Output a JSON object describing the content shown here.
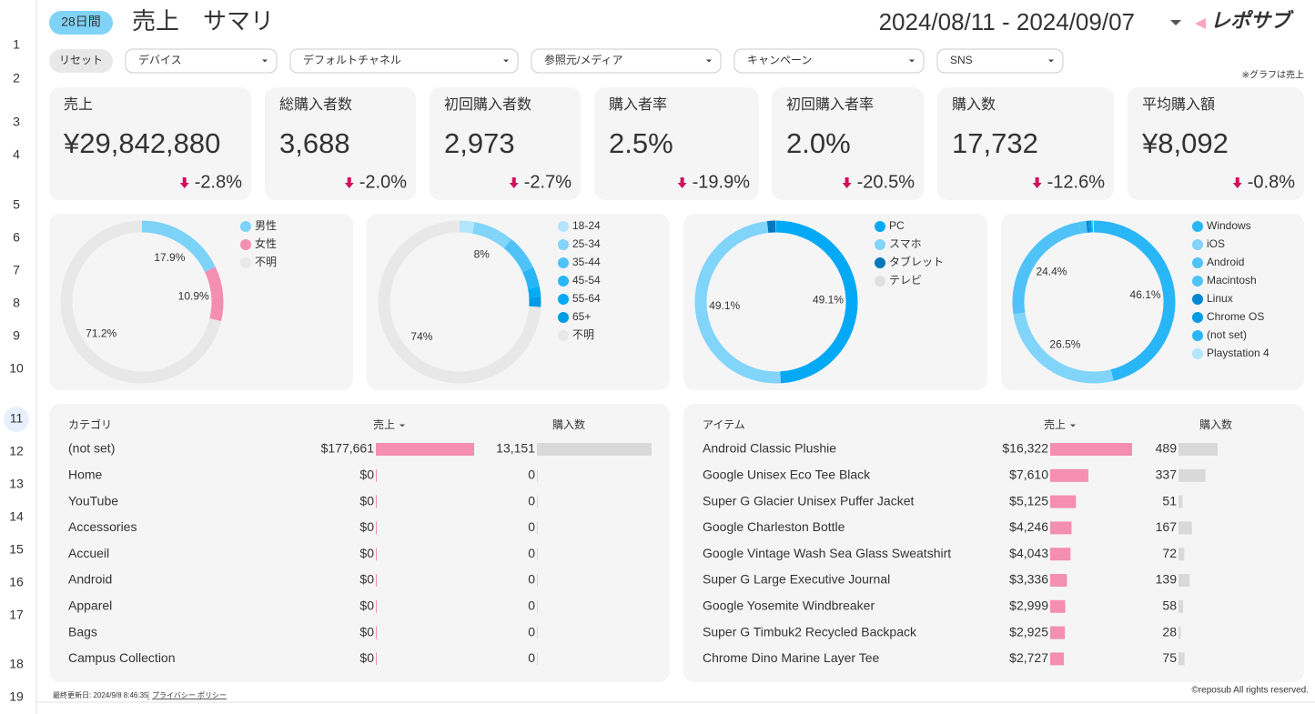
{
  "row_numbers": [
    1,
    2,
    3,
    4,
    5,
    6,
    7,
    8,
    9,
    10,
    11,
    12,
    13,
    14,
    15,
    16,
    17,
    18,
    19
  ],
  "header": {
    "period": "28日間",
    "title": "売上　サマリ",
    "date_range": "2024/08/11 - 2024/09/07",
    "logo": "レポサブ"
  },
  "filters": {
    "reset": "リセット",
    "dropdowns": [
      "デバイス",
      "デフォルトチャネル",
      "参照元/メディア",
      "キャンペーン",
      "SNS"
    ]
  },
  "note": "※グラフは売上",
  "kpis": [
    {
      "label": "売上",
      "value": "¥29,842,880",
      "delta": "-2.8%"
    },
    {
      "label": "総購入者数",
      "value": "3,688",
      "delta": "-2.0%"
    },
    {
      "label": "初回購入者数",
      "value": "2,973",
      "delta": "-2.7%"
    },
    {
      "label": "購入者率",
      "value": "2.5%",
      "delta": "-19.9%"
    },
    {
      "label": "初回購入者率",
      "value": "2.0%",
      "delta": "-20.5%"
    },
    {
      "label": "購入数",
      "value": "17,732",
      "delta": "-12.6%"
    },
    {
      "label": "平均購入額",
      "value": "¥8,092",
      "delta": "-0.8%"
    }
  ],
  "chart_data": [
    {
      "type": "pie",
      "categories": [
        "男性",
        "女性",
        "不明"
      ],
      "values": [
        17.9,
        10.9,
        71.2
      ],
      "value_labels": [
        "17.9%",
        "10.9%",
        "71.2%"
      ],
      "colors": [
        "#7dd3f7",
        "#f48fb1",
        "#e8e8e8"
      ]
    },
    {
      "type": "pie",
      "categories": [
        "18-24",
        "25-34",
        "35-44",
        "45-54",
        "55-64",
        "65+",
        "不明"
      ],
      "values": [
        3,
        8,
        7,
        4,
        2,
        2,
        74
      ],
      "value_labels": [
        null,
        "8%",
        null,
        null,
        null,
        null,
        "74%"
      ],
      "colors": [
        "#b3e5fc",
        "#81d4fa",
        "#4fc3f7",
        "#29b6f6",
        "#03a9f4",
        "#039be5",
        "#e8e8e8"
      ]
    },
    {
      "type": "pie",
      "categories": [
        "PC",
        "スマホ",
        "タブレット",
        "テレビ"
      ],
      "values": [
        49.1,
        49.1,
        1.7,
        0.1
      ],
      "value_labels": [
        "49.1%",
        "49.1%",
        null,
        null
      ],
      "colors": [
        "#03a9f4",
        "#81d4fa",
        "#0277bd",
        "#e0e0e0"
      ]
    },
    {
      "type": "pie",
      "categories": [
        "Windows",
        "iOS",
        "Android",
        "Macintosh",
        "Linux",
        "Chrome OS",
        "(not set)",
        "Playstation 4"
      ],
      "values": [
        46.1,
        26.5,
        24.4,
        1.5,
        0.5,
        0.5,
        0.3,
        0.2
      ],
      "value_labels": [
        "46.1%",
        "26.5%",
        "24.4%",
        null,
        null,
        null,
        null,
        null
      ],
      "colors": [
        "#29b6f6",
        "#81d4fa",
        "#4fc3f7",
        "#4fc3f7",
        "#0288d1",
        "#039be5",
        "#29b6f6",
        "#b3e5fc"
      ]
    }
  ],
  "category_table": {
    "columns": [
      "カテゴリ",
      "売上",
      "購入数"
    ],
    "rows": [
      "(not set)",
      "Home",
      "YouTube",
      "Accessories",
      "Accueil",
      "Android",
      "Apparel",
      "Bags",
      "Campus Collection"
    ],
    "revenue": {
      "values": [
        177661,
        0,
        0,
        0,
        0,
        0,
        0,
        0,
        0
      ],
      "value_labels": [
        "$177,661",
        "$0",
        "$0",
        "$0",
        "$0",
        "$0",
        "$0",
        "$0",
        "$0"
      ]
    },
    "purchases": {
      "values": [
        13151,
        0,
        0,
        0,
        0,
        0,
        0,
        0,
        0
      ],
      "value_labels": [
        "13,151",
        "0",
        "0",
        "0",
        "0",
        "0",
        "0",
        "0",
        "0"
      ]
    }
  },
  "item_table": {
    "columns": [
      "アイテム",
      "売上",
      "購入数"
    ],
    "rows": [
      "Android Classic Plushie",
      "Google Unisex Eco Tee Black",
      "Super G Glacier Unisex Puffer Jacket",
      "Google Charleston Bottle",
      "Google Vintage Wash Sea Glass Sweatshirt",
      "Super G Large Executive Journal",
      "Google Yosemite Windbreaker",
      "Super G Timbuk2 Recycled Backpack",
      "Chrome Dino Marine Layer Tee"
    ],
    "revenue": {
      "values": [
        16322,
        7610,
        5125,
        4246,
        4043,
        3336,
        2999,
        2925,
        2727
      ],
      "value_labels": [
        "$16,322",
        "$7,610",
        "$5,125",
        "$4,246",
        "$4,043",
        "$3,336",
        "$2,999",
        "$2,925",
        "$2,727"
      ]
    },
    "purchases": {
      "values": [
        489,
        337,
        51,
        167,
        72,
        139,
        58,
        28,
        75
      ],
      "value_labels": [
        "489",
        "337",
        "51",
        "167",
        "72",
        "139",
        "58",
        "28",
        "75"
      ]
    }
  },
  "footer": {
    "updated": "最終更新日: 2024/9/8 8:46:35",
    "privacy": "プライバシー ポリシー",
    "copyright": "©reposub All rights reserved."
  }
}
